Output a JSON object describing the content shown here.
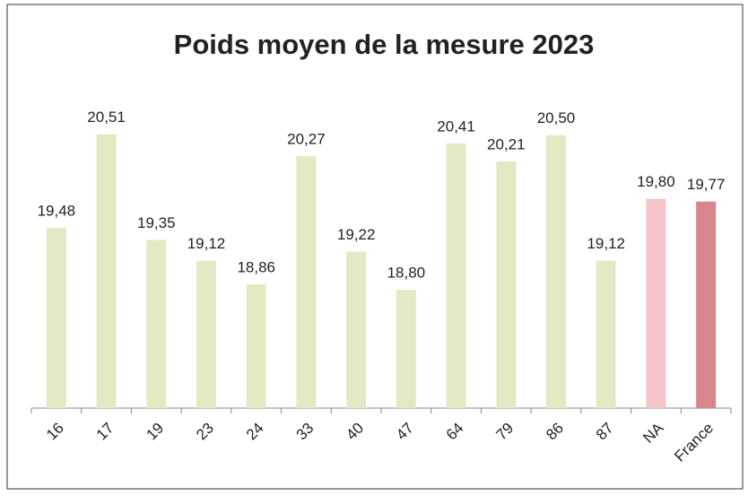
{
  "chart_data": {
    "type": "bar",
    "title": "Poids moyen de la mesure 2023",
    "categories": [
      "16",
      "17",
      "19",
      "23",
      "24",
      "33",
      "40",
      "47",
      "64",
      "79",
      "86",
      "87",
      "NA",
      "France"
    ],
    "values": [
      19.48,
      20.51,
      19.35,
      19.12,
      18.86,
      20.27,
      19.22,
      18.8,
      20.41,
      20.21,
      20.5,
      19.12,
      19.8,
      19.77
    ],
    "value_labels": [
      "19,48",
      "20,51",
      "19,35",
      "19,12",
      "18,86",
      "20,27",
      "19,22",
      "18,80",
      "20,41",
      "20,21",
      "20,50",
      "19,12",
      "19,80",
      "19,77"
    ],
    "colors": [
      "#e4e9c3",
      "#e4e9c3",
      "#e4e9c3",
      "#e4e9c3",
      "#e4e9c3",
      "#e4e9c3",
      "#e4e9c3",
      "#e4e9c3",
      "#e4e9c3",
      "#e4e9c3",
      "#e4e9c3",
      "#e4e9c3",
      "#f3c5ca",
      "#d9858d"
    ],
    "ylim": [
      17.5,
      21
    ]
  }
}
